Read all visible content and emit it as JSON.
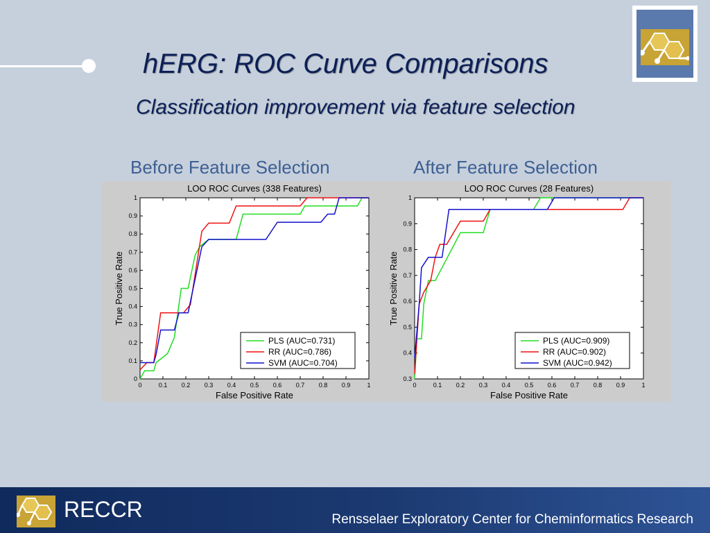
{
  "slide": {
    "title": "hERG: ROC Curve Comparisons",
    "subtitle": "Classification improvement via feature selection",
    "caption_left": "Before Feature Selection",
    "caption_right": "After Feature Selection"
  },
  "footer": {
    "brand": "RECCR",
    "organization": "Rensselaer Exploratory Center for Cheminformatics Research"
  },
  "colors": {
    "PLS": "#22dd22",
    "RR": "#ee1111",
    "SVM": "#1111cc"
  },
  "chart_data": [
    {
      "type": "line",
      "title": "LOO ROC Curves (338 Features)",
      "xlabel": "False Positive Rate",
      "ylabel": "True Positive Rate",
      "xlim": [
        0,
        1
      ],
      "ylim": [
        0,
        1
      ],
      "xticks": [
        "0",
        "0.1",
        "0.2",
        "0.3",
        "0.4",
        "0.5",
        "0.6",
        "0.7",
        "0.8",
        "0.9",
        "1"
      ],
      "yticks": [
        "0",
        "0.1",
        "0.2",
        "0.3",
        "0.4",
        "0.5",
        "0.6",
        "0.7",
        "0.8",
        "0.9",
        "1"
      ],
      "legend_position": "lower-right",
      "series": [
        {
          "name": "PLS (AUC=0.731)",
          "key": "PLS",
          "points": [
            [
              0,
              0
            ],
            [
              0.02,
              0.045
            ],
            [
              0.06,
              0.045
            ],
            [
              0.07,
              0.09
            ],
            [
              0.12,
              0.14
            ],
            [
              0.15,
              0.23
            ],
            [
              0.18,
              0.5
            ],
            [
              0.21,
              0.5
            ],
            [
              0.24,
              0.68
            ],
            [
              0.26,
              0.73
            ],
            [
              0.3,
              0.77
            ],
            [
              0.42,
              0.77
            ],
            [
              0.45,
              0.91
            ],
            [
              0.7,
              0.91
            ],
            [
              0.72,
              0.955
            ],
            [
              0.95,
              0.955
            ],
            [
              0.97,
              1
            ],
            [
              1,
              1
            ]
          ]
        },
        {
          "name": "RR (AUC=0.786)",
          "key": "RR",
          "points": [
            [
              0,
              0.05
            ],
            [
              0.03,
              0.09
            ],
            [
              0.06,
              0.09
            ],
            [
              0.09,
              0.365
            ],
            [
              0.19,
              0.365
            ],
            [
              0.22,
              0.41
            ],
            [
              0.27,
              0.815
            ],
            [
              0.3,
              0.86
            ],
            [
              0.39,
              0.86
            ],
            [
              0.42,
              0.955
            ],
            [
              0.7,
              0.955
            ],
            [
              0.73,
              1
            ],
            [
              1,
              1
            ]
          ]
        },
        {
          "name": "SVM (AUC=0.704)",
          "key": "SVM",
          "points": [
            [
              0,
              0.09
            ],
            [
              0.06,
              0.09
            ],
            [
              0.07,
              0.135
            ],
            [
              0.09,
              0.27
            ],
            [
              0.15,
              0.27
            ],
            [
              0.17,
              0.365
            ],
            [
              0.21,
              0.365
            ],
            [
              0.27,
              0.73
            ],
            [
              0.3,
              0.77
            ],
            [
              0.55,
              0.77
            ],
            [
              0.6,
              0.865
            ],
            [
              0.79,
              0.865
            ],
            [
              0.82,
              0.91
            ],
            [
              0.85,
              0.91
            ],
            [
              0.87,
              1
            ],
            [
              1,
              1
            ]
          ]
        }
      ]
    },
    {
      "type": "line",
      "title": "LOO ROC Curves (28 Features)",
      "xlabel": "False Positive Rate",
      "ylabel": "True Positive Rate",
      "xlim": [
        0,
        1
      ],
      "ylim": [
        0.3,
        1
      ],
      "xticks": [
        "0",
        "0.1",
        "0.2",
        "0.3",
        "0.4",
        "0.5",
        "0.6",
        "0.7",
        "0.8",
        "0.9",
        "1"
      ],
      "yticks": [
        "0.3",
        "0.4",
        "0.5",
        "0.6",
        "0.7",
        "0.8",
        "0.9",
        "1"
      ],
      "legend_position": "lower-right",
      "series": [
        {
          "name": "PLS (AUC=0.909)",
          "key": "PLS",
          "points": [
            [
              0,
              0.3
            ],
            [
              0.01,
              0.455
            ],
            [
              0.03,
              0.455
            ],
            [
              0.04,
              0.59
            ],
            [
              0.06,
              0.68
            ],
            [
              0.09,
              0.68
            ],
            [
              0.2,
              0.865
            ],
            [
              0.3,
              0.865
            ],
            [
              0.33,
              0.955
            ],
            [
              0.52,
              0.955
            ],
            [
              0.55,
              1
            ],
            [
              1,
              1
            ]
          ]
        },
        {
          "name": "RR (AUC=0.902)",
          "key": "RR",
          "points": [
            [
              0,
              0.32
            ],
            [
              0.02,
              0.59
            ],
            [
              0.04,
              0.635
            ],
            [
              0.07,
              0.68
            ],
            [
              0.09,
              0.77
            ],
            [
              0.11,
              0.82
            ],
            [
              0.14,
              0.82
            ],
            [
              0.2,
              0.91
            ],
            [
              0.3,
              0.91
            ],
            [
              0.33,
              0.955
            ],
            [
              0.91,
              0.955
            ],
            [
              0.94,
              1
            ],
            [
              1,
              1
            ]
          ]
        },
        {
          "name": "SVM (AUC=0.942)",
          "key": "SVM",
          "points": [
            [
              0,
              0.38
            ],
            [
              0.02,
              0.59
            ],
            [
              0.03,
              0.73
            ],
            [
              0.06,
              0.77
            ],
            [
              0.12,
              0.77
            ],
            [
              0.15,
              0.955
            ],
            [
              0.58,
              0.955
            ],
            [
              0.61,
              1
            ],
            [
              1,
              1
            ]
          ]
        }
      ]
    }
  ]
}
